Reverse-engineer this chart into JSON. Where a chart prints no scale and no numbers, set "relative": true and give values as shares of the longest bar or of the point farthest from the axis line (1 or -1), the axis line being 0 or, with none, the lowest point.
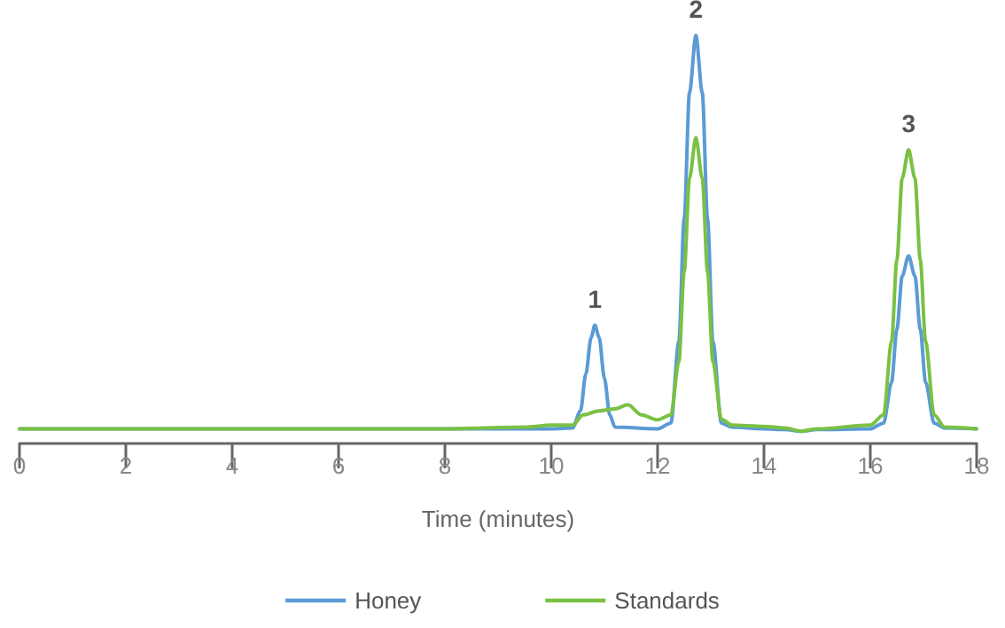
{
  "chart_data": {
    "type": "line",
    "relative": true,
    "xlabel": "Time (minutes)",
    "xlim": [
      0,
      18
    ],
    "xticks": [
      0,
      2,
      4,
      6,
      8,
      10,
      12,
      14,
      16,
      18
    ],
    "grid": false,
    "legend": "bottom",
    "marker": "none",
    "line_style": "solid",
    "annotations": [
      {
        "text": "1",
        "x": 10.82,
        "y": 0.29
      },
      {
        "text": "2",
        "x": 12.72,
        "y": 1.0
      },
      {
        "text": "3",
        "x": 16.72,
        "y": 0.72
      }
    ],
    "series": [
      {
        "name": "Honey",
        "color": "#5b9bd5",
        "x": [
          0,
          8,
          10,
          10.4,
          10.55,
          10.65,
          10.75,
          10.82,
          10.9,
          11.0,
          11.1,
          11.2,
          12.0,
          12.25,
          12.4,
          12.5,
          12.6,
          12.72,
          12.84,
          12.94,
          13.04,
          13.2,
          13.4,
          14.0,
          14.4,
          14.7,
          15.0,
          16.0,
          16.25,
          16.4,
          16.5,
          16.6,
          16.72,
          16.84,
          16.94,
          17.04,
          17.2,
          17.4,
          18
        ],
        "values": [
          0.036,
          0.036,
          0.036,
          0.038,
          0.08,
          0.17,
          0.26,
          0.29,
          0.26,
          0.16,
          0.07,
          0.04,
          0.036,
          0.05,
          0.25,
          0.55,
          0.86,
          1.0,
          0.86,
          0.55,
          0.25,
          0.05,
          0.04,
          0.036,
          0.034,
          0.03,
          0.034,
          0.036,
          0.05,
          0.15,
          0.28,
          0.41,
          0.46,
          0.41,
          0.28,
          0.15,
          0.05,
          0.038,
          0.036
        ]
      },
      {
        "name": "Standards",
        "color": "#7ac143",
        "x": [
          0,
          8,
          9.5,
          10.0,
          10.4,
          10.6,
          10.9,
          11.2,
          11.44,
          11.7,
          12.0,
          12.25,
          12.4,
          12.5,
          12.6,
          12.72,
          12.84,
          12.94,
          13.04,
          13.2,
          13.4,
          14.0,
          14.4,
          14.7,
          15.0,
          16.0,
          16.25,
          16.4,
          16.5,
          16.6,
          16.72,
          16.84,
          16.94,
          17.04,
          17.2,
          17.4,
          18
        ],
        "values": [
          0.036,
          0.036,
          0.04,
          0.045,
          0.045,
          0.07,
          0.08,
          0.085,
          0.095,
          0.07,
          0.058,
          0.07,
          0.2,
          0.42,
          0.65,
          0.75,
          0.65,
          0.42,
          0.2,
          0.06,
          0.045,
          0.042,
          0.038,
          0.03,
          0.036,
          0.045,
          0.07,
          0.25,
          0.45,
          0.65,
          0.72,
          0.65,
          0.45,
          0.25,
          0.07,
          0.04,
          0.036
        ]
      }
    ]
  }
}
